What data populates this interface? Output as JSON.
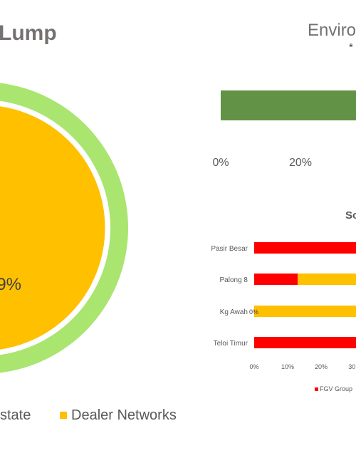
{
  "chart_data": [
    {
      "type": "pie",
      "title": "...ump",
      "slices": [
        {
          "label": "...state",
          "value": 1
        },
        {
          "label": "Dealer Networks",
          "value": 99,
          "data_label": "99%"
        }
      ],
      "data_label_visible": "...9%",
      "colors": {
        "outer_ring": "#a9e56f",
        "pie_fill": "#ffc000"
      },
      "legend": [
        "...state",
        "Dealer Networks"
      ],
      "legend_placement": "bottom"
    },
    {
      "type": "bar",
      "orientation": "horizontal",
      "title": "Enviro...",
      "subtitle": "*",
      "values": [
        100
      ],
      "x_tick_labels": [
        "0%",
        "20%"
      ],
      "xlim": [
        0,
        100
      ],
      "colors": {
        "bar": "#629246"
      }
    },
    {
      "type": "bar",
      "orientation": "horizontal",
      "stacked": true,
      "title": "So...",
      "categories": [
        "Pasir Besar",
        "Palong 8",
        "Kg Awah",
        "Teloi Timur"
      ],
      "series": [
        {
          "name": "FGV Group",
          "color": "#ff0000",
          "values": [
            100,
            13,
            0,
            100
          ],
          "labels": [
            "",
            "",
            "0%",
            ""
          ]
        },
        {
          "name": "",
          "color": "#ffc000",
          "values": [
            0,
            87,
            100,
            0
          ]
        }
      ],
      "x_tick_labels": [
        "0%",
        "10%",
        "20%",
        "30..."
      ],
      "xlim": [
        0,
        100
      ],
      "legend_placement": "bottom"
    }
  ],
  "text": {
    "left_title": "Lump",
    "right_title": "Enviro",
    "subnote": "*",
    "small_title": "So",
    "legend_left_1": "state",
    "legend_left_2": "Dealer Networks",
    "legend_small": "FGV Group",
    "big_label": "9%",
    "awah_label": "0%"
  }
}
